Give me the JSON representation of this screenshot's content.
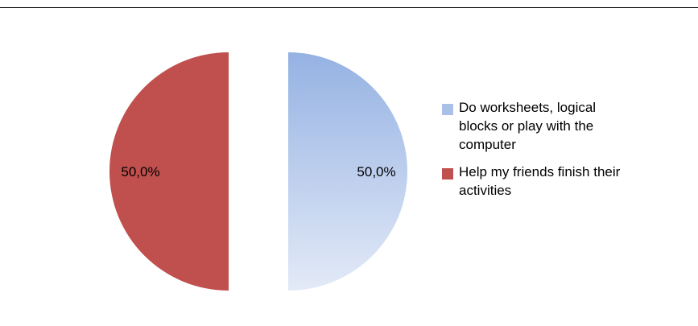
{
  "chart_data": {
    "type": "pie",
    "categories": [
      "Do worksheets, logical blocks or play with the computer",
      "Help my friends finish their activities"
    ],
    "values": [
      50.0,
      50.0
    ],
    "data_labels": [
      "50,0%",
      "50,0%"
    ],
    "colors": [
      "#9db6e4",
      "#c0504d"
    ],
    "legend_position": "right",
    "exploded": true
  },
  "legend": {
    "items": [
      {
        "label": "Do worksheets, logical blocks or play with the computer",
        "color": "#9db6e4"
      },
      {
        "label": "Help my friends finish their activities",
        "color": "#c0504d"
      }
    ]
  }
}
